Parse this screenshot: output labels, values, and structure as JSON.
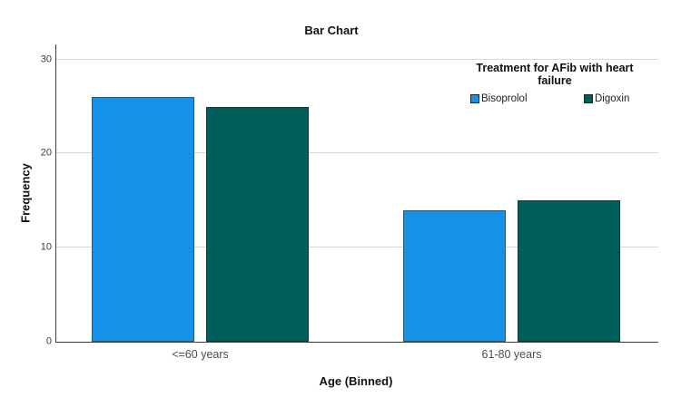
{
  "chart_data": {
    "type": "bar",
    "title": "Bar Chart",
    "categories": [
      "<=60 years",
      "61-80 years"
    ],
    "series": [
      {
        "name": "Bisoprolol",
        "values": [
          26,
          14
        ],
        "color": "#1591E8",
        "border": "#33586E"
      },
      {
        "name": "Digoxin",
        "values": [
          25,
          15
        ],
        "color": "#005E5B",
        "border": "#0E3A3C"
      }
    ],
    "xlabel": "Age (Binned)",
    "ylabel": "Frequency",
    "yticks": [
      0,
      10,
      20,
      30
    ],
    "ylim": [
      0,
      31.6
    ],
    "grid": true,
    "gridline_color": "#d8d8d8",
    "axis_color": "#3f3f3f",
    "legend_title": "Treatment for AFib with heart failure",
    "legend_position": "top-right-inside"
  }
}
